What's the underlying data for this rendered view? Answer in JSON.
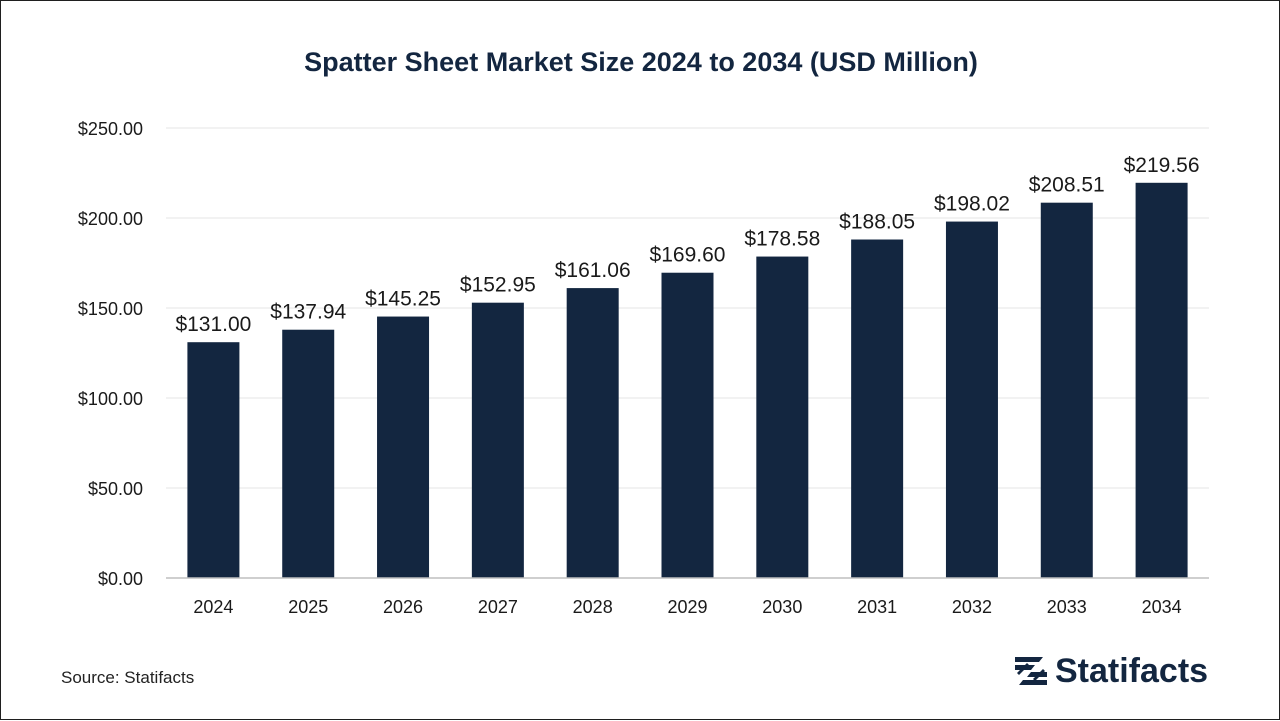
{
  "colors": {
    "bar": "#132640",
    "grid": "#e6e6e6",
    "axis": "#bfbfbf",
    "text": "#1a1a1a",
    "title": "#132640"
  },
  "chart_data": {
    "type": "bar",
    "title": "Spatter Sheet Market Size 2024 to 2034 (USD Million)",
    "categories": [
      "2024",
      "2025",
      "2026",
      "2027",
      "2028",
      "2029",
      "2030",
      "2031",
      "2032",
      "2033",
      "2034"
    ],
    "values": [
      131.0,
      137.94,
      145.25,
      152.95,
      161.06,
      169.6,
      178.58,
      188.05,
      198.02,
      208.51,
      219.56
    ],
    "data_labels": [
      "$131.00",
      "$137.94",
      "$145.25",
      "$152.95",
      "$161.06",
      "$169.60",
      "$178.58",
      "$188.05",
      "$198.02",
      "$208.51",
      "$219.56"
    ],
    "ylim": [
      0,
      250
    ],
    "yticks": [
      0,
      50,
      100,
      150,
      200,
      250
    ],
    "ytick_labels": [
      "$0.00",
      "$50.00",
      "$100.00",
      "$150.00",
      "$200.00",
      "$250.00"
    ],
    "grid": true,
    "legend": "none"
  },
  "footer": {
    "source": "Source: Statifacts",
    "logo_text": "Statifacts",
    "logo_icon": "statifacts-logo-icon"
  }
}
